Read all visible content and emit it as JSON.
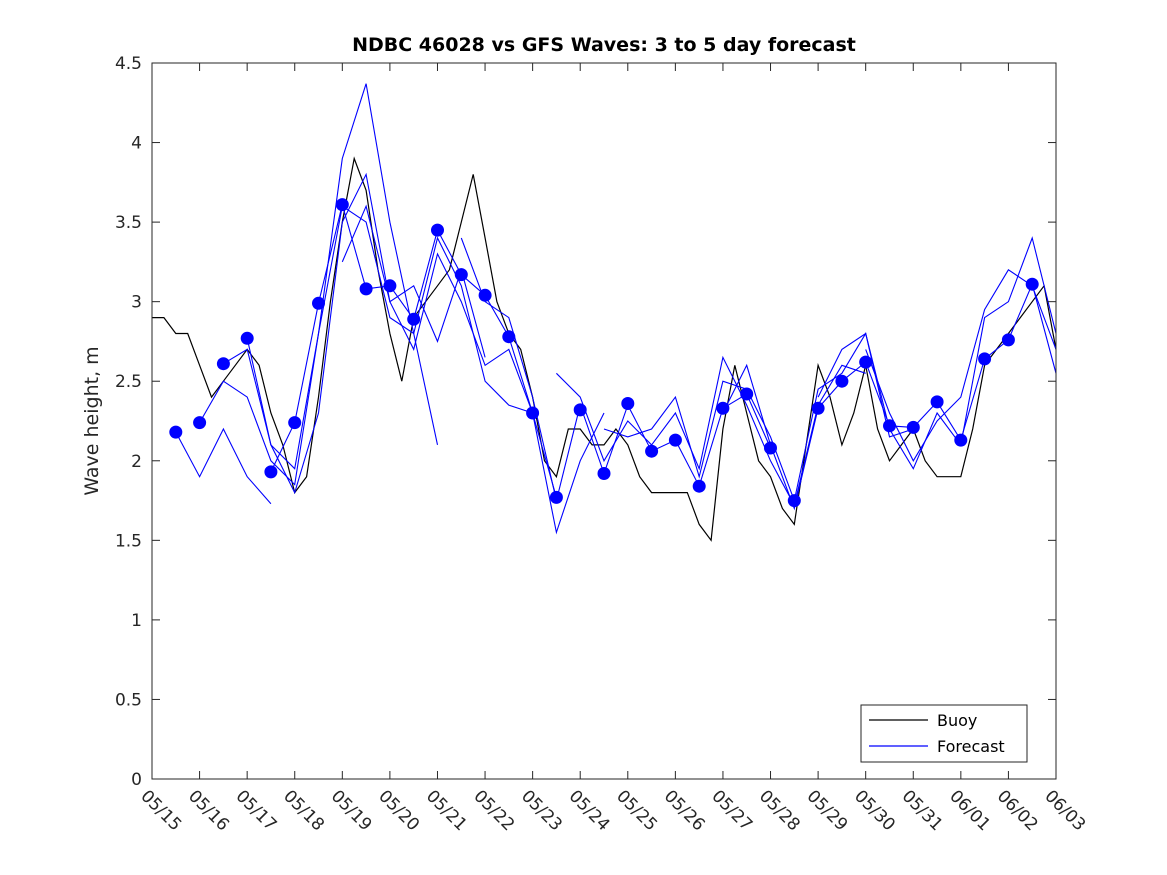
{
  "chart_data": {
    "type": "line",
    "title": "NDBC 46028 vs GFS Waves: 3 to 5 day forecast",
    "xlabel": "",
    "ylabel": "Wave height, m",
    "xlim": [
      "05/15",
      "06/03"
    ],
    "ylim": [
      0,
      4.5
    ],
    "y_ticks": [
      "0",
      "0.5",
      "1",
      "1.5",
      "2",
      "2.5",
      "3",
      "3.5",
      "4",
      "4.5"
    ],
    "x_ticks": [
      "05/15",
      "05/16",
      "05/17",
      "05/18",
      "05/19",
      "05/20",
      "05/21",
      "05/22",
      "05/23",
      "05/24",
      "05/25",
      "05/26",
      "05/27",
      "05/28",
      "05/29",
      "05/30",
      "05/31",
      "06/01",
      "06/02",
      "06/03"
    ],
    "grid": false,
    "legend": {
      "position": "bottom-right",
      "entries": [
        "Buoy",
        "Forecast"
      ]
    },
    "colors": {
      "buoy": "#000000",
      "forecast": "#0000ff",
      "markers": "#0000ff"
    },
    "series": [
      {
        "name": "Buoy",
        "x": [
          "05/15 00:00",
          "05/15 06:00",
          "05/15 12:00",
          "05/15 18:00",
          "05/16 00:00",
          "05/16 06:00",
          "05/16 12:00",
          "05/16 18:00",
          "05/17 00:00",
          "05/17 06:00",
          "05/17 12:00",
          "05/17 18:00",
          "05/18 00:00",
          "05/18 06:00",
          "05/18 12:00",
          "05/18 18:00",
          "05/19 00:00",
          "05/19 06:00",
          "05/19 12:00",
          "05/19 18:00",
          "05/20 00:00",
          "05/20 06:00",
          "05/20 12:00",
          "05/20 18:00",
          "05/21 00:00",
          "05/21 06:00",
          "05/21 12:00",
          "05/21 18:00",
          "05/22 00:00",
          "05/22 06:00",
          "05/22 12:00",
          "05/22 18:00",
          "05/23 00:00",
          "05/23 06:00",
          "05/23 12:00",
          "05/23 18:00",
          "05/24 00:00",
          "05/24 06:00",
          "05/24 12:00",
          "05/24 18:00",
          "05/25 00:00",
          "05/25 06:00",
          "05/25 12:00",
          "05/25 18:00",
          "05/26 00:00",
          "05/26 06:00",
          "05/26 12:00",
          "05/26 18:00",
          "05/27 00:00",
          "05/27 06:00",
          "05/27 12:00",
          "05/27 18:00",
          "05/28 00:00",
          "05/28 06:00",
          "05/28 12:00",
          "05/28 18:00",
          "05/29 00:00",
          "05/29 06:00",
          "05/29 12:00",
          "05/29 18:00",
          "05/30 00:00",
          "05/30 06:00",
          "05/30 12:00",
          "05/30 18:00",
          "05/31 00:00",
          "05/31 06:00",
          "05/31 12:00",
          "05/31 18:00",
          "06/01 00:00",
          "06/01 06:00",
          "06/01 12:00",
          "06/01 18:00",
          "06/02 00:00",
          "06/02 06:00",
          "06/02 12:00",
          "06/02 18:00",
          "06/03 00:00"
        ],
        "y": [
          2.9,
          2.9,
          2.8,
          2.8,
          2.6,
          2.4,
          2.5,
          2.6,
          2.7,
          2.6,
          2.3,
          2.1,
          1.8,
          1.9,
          2.4,
          3.0,
          3.5,
          3.9,
          3.7,
          3.2,
          2.8,
          2.5,
          2.9,
          3.0,
          3.1,
          3.2,
          3.5,
          3.8,
          3.4,
          3.0,
          2.8,
          2.7,
          2.4,
          2.0,
          1.9,
          2.2,
          2.2,
          2.1,
          2.1,
          2.2,
          2.1,
          1.9,
          1.8,
          1.8,
          1.8,
          1.8,
          1.6,
          1.5,
          2.2,
          2.6,
          2.3,
          2.0,
          1.9,
          1.7,
          1.6,
          2.1,
          2.6,
          2.4,
          2.1,
          2.3,
          2.6,
          2.2,
          2.0,
          2.1,
          2.2,
          2.0,
          1.9,
          1.9,
          1.9,
          2.2,
          2.6,
          2.7,
          2.8,
          2.9,
          3.0,
          3.1,
          2.7
        ]
      },
      {
        "name": "Forecast",
        "runs": [
          {
            "x": [
              "05/15 12:00",
              "05/16 00:00",
              "05/16 12:00",
              "05/17 00:00",
              "05/17 12:00"
            ],
            "y": [
              2.18,
              1.9,
              2.2,
              1.9,
              1.73
            ]
          },
          {
            "x": [
              "05/16 00:00",
              "05/16 12:00",
              "05/17 00:00",
              "05/17 12:00",
              "05/18 00:00",
              "05/18 12:00",
              "05/19 00:00",
              "05/19 12:00",
              "05/20 00:00",
              "05/20 12:00",
              "05/21 00:00"
            ],
            "y": [
              2.24,
              2.5,
              2.4,
              2.0,
              1.85,
              2.8,
              3.9,
              4.37,
              3.5,
              2.8,
              2.1
            ]
          },
          {
            "x": [
              "05/16 12:00",
              "05/17 00:00",
              "05/17 12:00",
              "05/18 00:00",
              "05/18 12:00",
              "05/19 00:00",
              "05/19 12:00",
              "05/20 00:00",
              "05/20 12:00",
              "05/21 00:00",
              "05/21 12:00",
              "05/22 00:00"
            ],
            "y": [
              2.61,
              2.7,
              2.1,
              1.8,
              2.3,
              3.5,
              3.8,
              3.0,
              3.1,
              2.75,
              3.2,
              2.65
            ]
          },
          {
            "x": [
              "05/17 00:00",
              "05/17 12:00",
              "05/18 00:00",
              "05/18 12:00",
              "05/19 00:00",
              "05/19 12:00",
              "05/20 00:00",
              "05/20 12:00",
              "05/21 00:00",
              "05/21 12:00",
              "05/22 00:00",
              "05/22 12:00",
              "05/23 00:00"
            ],
            "y": [
              2.77,
              2.1,
              1.95,
              2.8,
              3.6,
              3.5,
              2.9,
              2.8,
              3.4,
              3.1,
              2.5,
              2.35,
              2.3
            ]
          },
          {
            "x": [
              "05/17 12:00",
              "05/18 00:00",
              "05/18 12:00",
              "05/19 00:00",
              "05/19 12:00",
              "05/20 00:00",
              "05/20 12:00",
              "05/21 00:00",
              "05/21 12:00",
              "05/22 00:00",
              "05/22 12:00",
              "05/23 00:00",
              "05/23 12:00"
            ],
            "y": [
              1.93,
              2.24,
              2.99,
              3.61,
              3.08,
              3.1,
              2.89,
              3.45,
              3.17,
              3.04,
              2.78,
              2.3,
              1.77
            ]
          },
          {
            "x": [
              "05/19 00:00",
              "05/19 12:00",
              "05/20 00:00",
              "05/20 12:00",
              "05/21 00:00",
              "05/21 12:00",
              "05/22 00:00",
              "05/22 12:00",
              "05/23 00:00",
              "05/23 12:00",
              "05/24 00:00",
              "05/24 12:00"
            ],
            "y": [
              3.25,
              3.6,
              3.0,
              2.7,
              3.3,
              3.0,
              2.6,
              2.7,
              2.3,
              1.55,
              2.0,
              2.3
            ]
          },
          {
            "x": [
              "05/21 12:00",
              "05/22 00:00",
              "05/22 12:00",
              "05/23 00:00",
              "05/23 12:00",
              "05/24 00:00",
              "05/24 12:00",
              "05/25 00:00",
              "05/25 12:00",
              "05/26 00:00",
              "05/26 12:00",
              "05/27 00:00",
              "05/27 12:00",
              "05/28 00:00"
            ],
            "y": [
              3.4,
              3.0,
              2.9,
              2.4,
              1.75,
              2.35,
              1.92,
              2.35,
              2.06,
              2.13,
              1.84,
              2.33,
              2.42,
              2.08
            ]
          },
          {
            "x": [
              "05/23 12:00",
              "05/24 00:00",
              "05/24 12:00",
              "05/25 00:00",
              "05/25 12:00",
              "05/26 00:00",
              "05/26 12:00",
              "05/27 00:00",
              "05/27 12:00",
              "05/28 00:00",
              "05/28 12:00",
              "05/29 00:00",
              "05/29 12:00",
              "05/30 00:00"
            ],
            "y": [
              2.55,
              2.4,
              2.0,
              2.25,
              2.1,
              2.3,
              1.95,
              2.65,
              2.35,
              2.0,
              1.72,
              2.35,
              2.6,
              2.55
            ]
          },
          {
            "x": [
              "05/24 12:00",
              "05/25 00:00",
              "05/25 12:00",
              "05/26 00:00",
              "05/26 12:00",
              "05/27 00:00",
              "05/27 12:00",
              "05/28 00:00",
              "05/28 12:00",
              "05/29 00:00",
              "05/29 12:00",
              "05/30 00:00",
              "05/30 12:00",
              "05/31 00:00"
            ],
            "y": [
              2.2,
              2.15,
              2.2,
              2.4,
              1.9,
              2.5,
              2.45,
              2.15,
              1.75,
              2.45,
              2.55,
              2.8,
              2.15,
              2.2
            ]
          },
          {
            "x": [
              "05/27 00:00",
              "05/27 12:00",
              "05/28 00:00",
              "05/28 12:00",
              "05/29 00:00",
              "05/29 12:00",
              "05/30 00:00",
              "05/30 12:00",
              "05/31 00:00",
              "05/31 12:00",
              "06/01 00:00",
              "06/01 12:00",
              "06/02 00:00",
              "06/02 12:00",
              "06/03 00:00"
            ],
            "y": [
              2.3,
              2.6,
              2.1,
              1.7,
              2.33,
              2.5,
              2.62,
              2.22,
              2.21,
              2.37,
              2.13,
              2.64,
              2.76,
              3.11,
              2.55
            ]
          },
          {
            "x": [
              "05/29 00:00",
              "05/29 12:00",
              "05/30 00:00",
              "05/30 12:00",
              "05/31 00:00",
              "05/31 12:00",
              "06/01 00:00",
              "06/01 12:00",
              "06/02 00:00",
              "06/02 12:00",
              "06/03 00:00"
            ],
            "y": [
              2.4,
              2.7,
              2.8,
              2.2,
              1.95,
              2.3,
              2.1,
              2.9,
              3.0,
              3.4,
              2.8
            ]
          },
          {
            "x": [
              "05/30 00:00",
              "05/30 12:00",
              "05/31 00:00",
              "05/31 12:00",
              "06/01 00:00",
              "06/01 12:00",
              "06/02 00:00",
              "06/02 12:00",
              "06/03 00:00"
            ],
            "y": [
              2.7,
              2.3,
              2.0,
              2.25,
              2.4,
              2.95,
              3.2,
              3.1,
              2.7
            ]
          }
        ],
        "markers": {
          "x": [
            "05/15 12:00",
            "05/16 00:00",
            "05/16 12:00",
            "05/17 00:00",
            "05/17 12:00",
            "05/18 00:00",
            "05/18 12:00",
            "05/19 00:00",
            "05/19 12:00",
            "05/20 00:00",
            "05/20 12:00",
            "05/21 00:00",
            "05/21 12:00",
            "05/22 00:00",
            "05/22 12:00",
            "05/23 00:00",
            "05/23 12:00",
            "05/24 00:00",
            "05/24 12:00",
            "05/25 00:00",
            "05/25 12:00",
            "05/26 00:00",
            "05/26 12:00",
            "05/27 00:00",
            "05/27 12:00",
            "05/28 00:00",
            "05/28 12:00",
            "05/29 00:00",
            "05/29 12:00",
            "05/30 00:00",
            "05/30 12:00",
            "05/31 00:00",
            "05/31 12:00",
            "06/01 00:00",
            "06/01 12:00",
            "06/02 00:00",
            "06/02 12:00"
          ],
          "y": [
            2.18,
            2.24,
            2.61,
            2.77,
            1.93,
            2.24,
            2.99,
            3.61,
            3.08,
            3.1,
            2.89,
            3.45,
            3.17,
            3.04,
            2.78,
            2.3,
            1.77,
            2.32,
            1.92,
            2.36,
            2.06,
            2.13,
            1.84,
            2.33,
            2.42,
            2.08,
            1.75,
            2.33,
            2.5,
            2.62,
            2.22,
            2.21,
            2.37,
            2.13,
            2.64,
            2.76,
            3.11
          ]
        }
      }
    ]
  }
}
